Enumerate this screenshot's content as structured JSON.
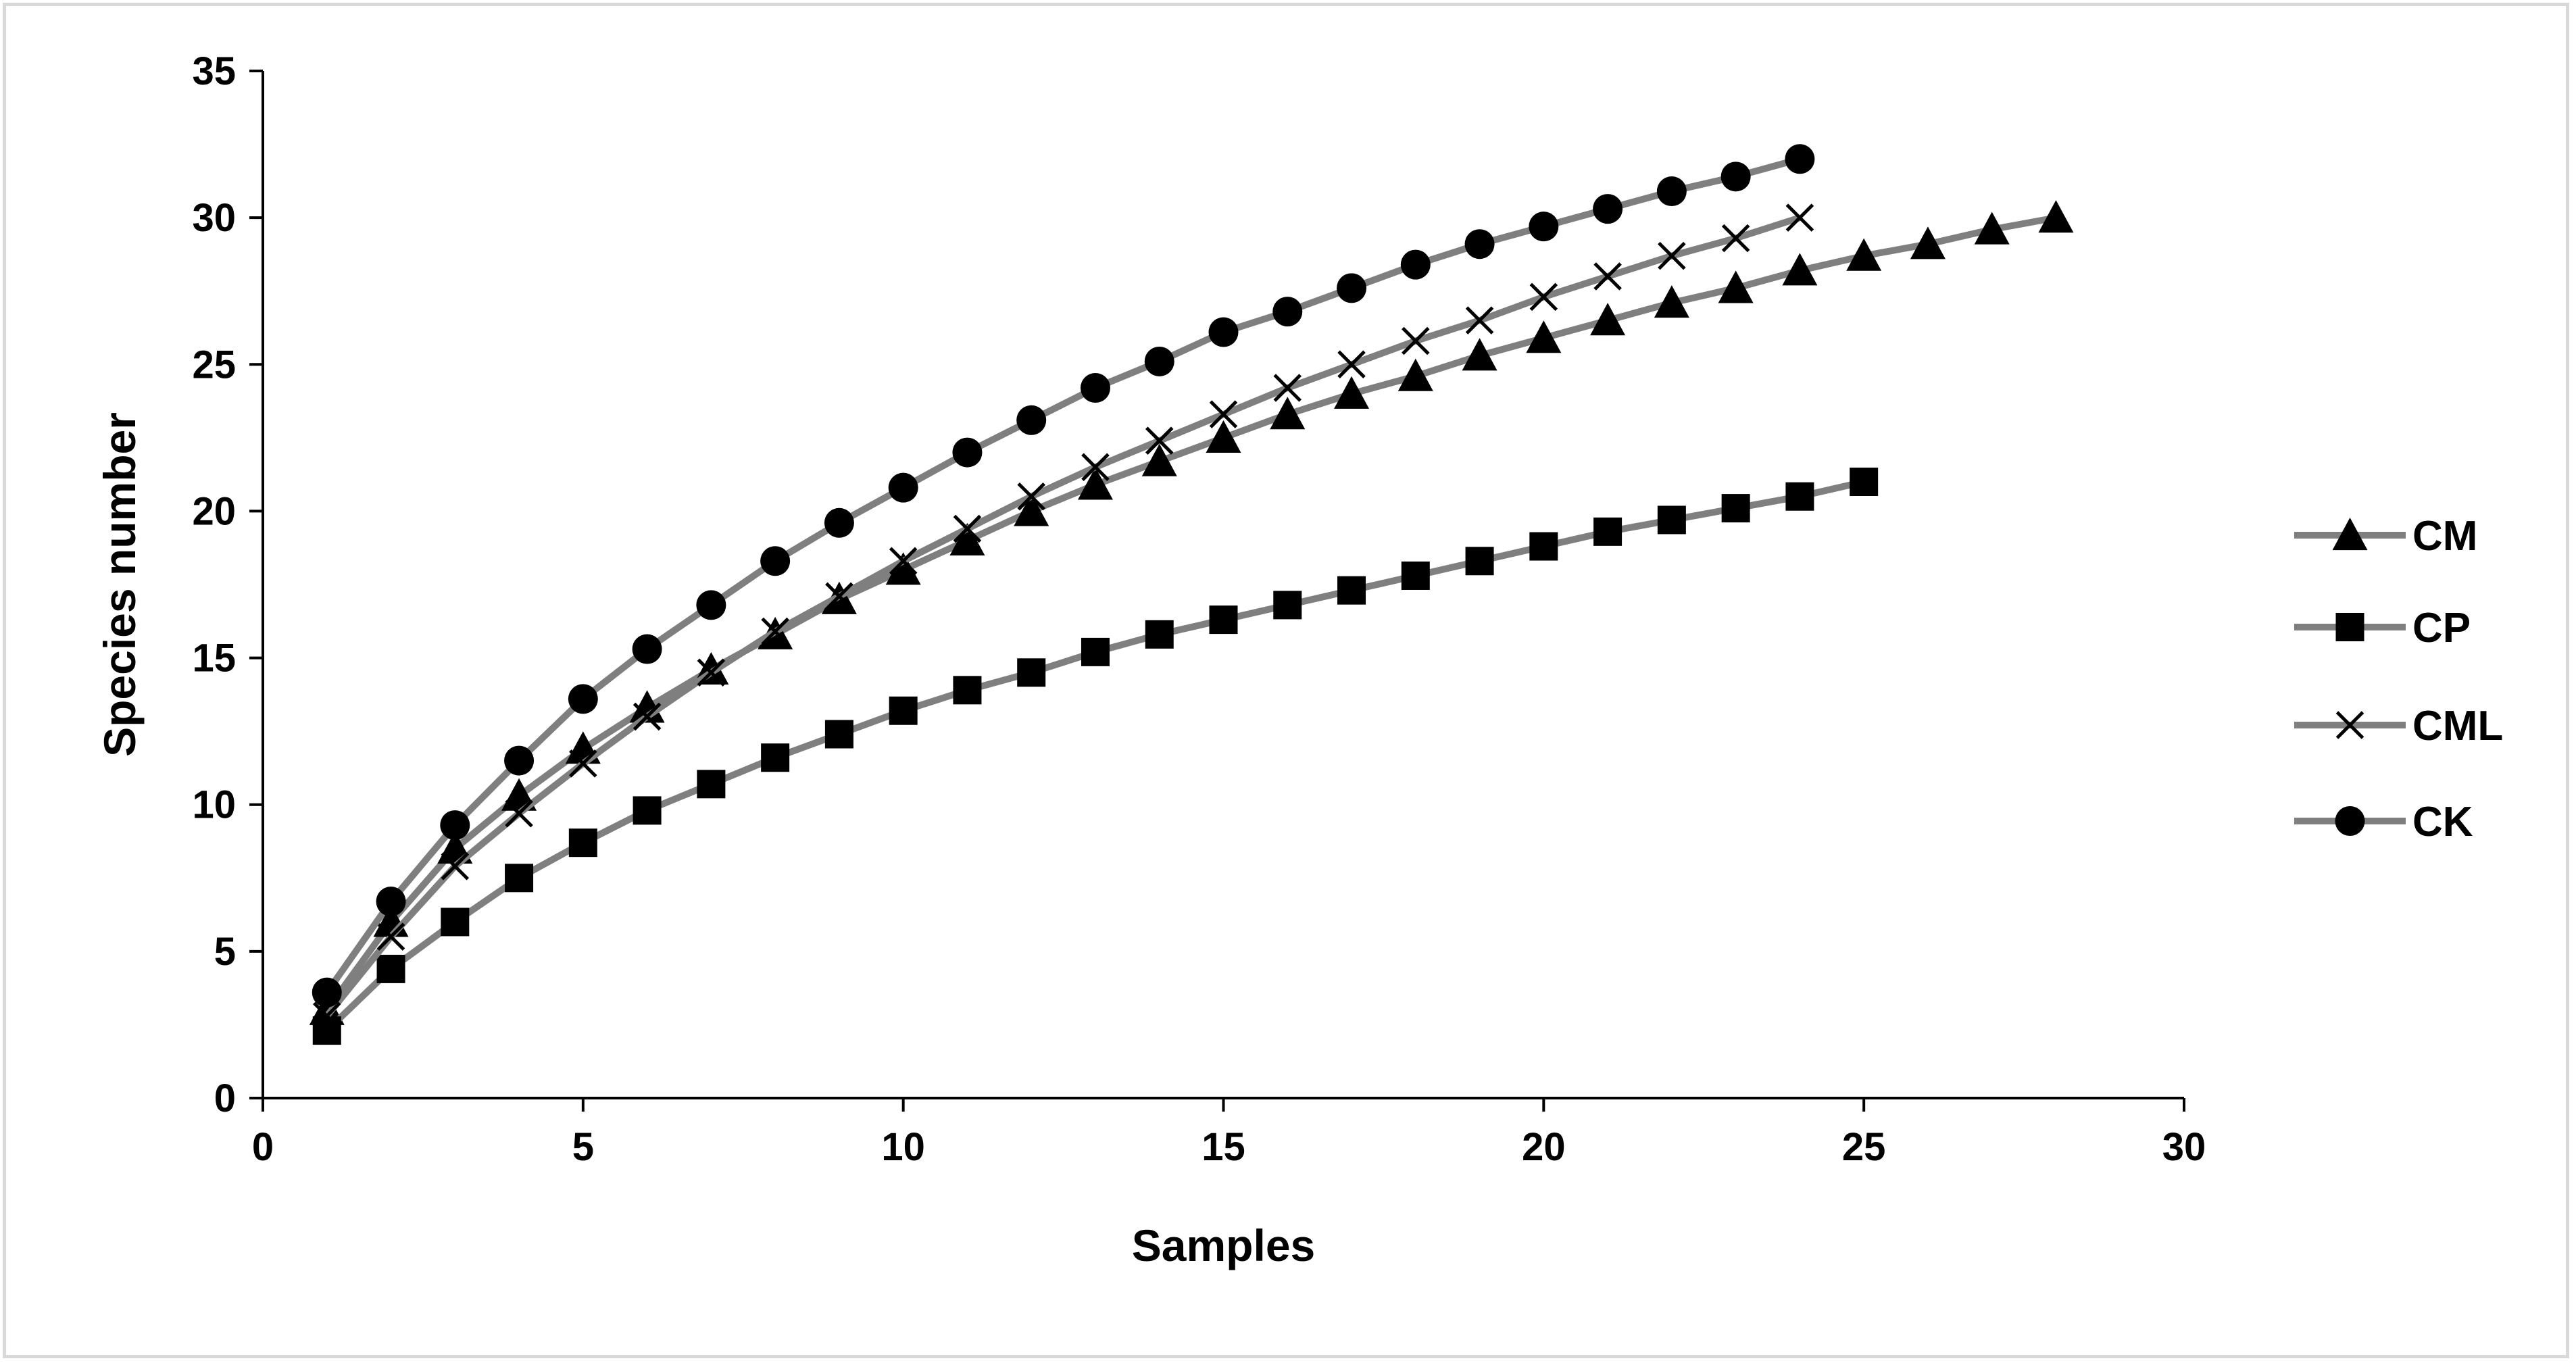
{
  "chart_data": {
    "type": "line",
    "xlabel": "Samples",
    "ylabel": "Species number",
    "xlim": [
      0,
      30
    ],
    "ylim": [
      0,
      35
    ],
    "x_ticks": [
      0,
      5,
      10,
      15,
      20,
      25,
      30
    ],
    "y_ticks": [
      0,
      5,
      10,
      15,
      20,
      25,
      30,
      35
    ],
    "grid": false,
    "legend_position": "right",
    "line_color": "#7f7f7f",
    "marker_color": "#000000",
    "series": [
      {
        "name": "CM",
        "marker": "triangle",
        "x": [
          1,
          2,
          3,
          4,
          5,
          6,
          7,
          8,
          9,
          10,
          11,
          12,
          13,
          14,
          15,
          16,
          17,
          18,
          19,
          20,
          21,
          22,
          23,
          24,
          25,
          26,
          27,
          28
        ],
        "values": [
          3.0,
          6.0,
          8.5,
          10.3,
          11.9,
          13.3,
          14.6,
          15.8,
          17.0,
          18.0,
          19.0,
          20.0,
          20.9,
          21.7,
          22.5,
          23.3,
          24.0,
          24.6,
          25.3,
          25.9,
          26.5,
          27.1,
          27.6,
          28.2,
          28.7,
          29.1,
          29.6,
          30.0
        ]
      },
      {
        "name": "CP",
        "marker": "square",
        "x": [
          1,
          2,
          3,
          4,
          5,
          6,
          7,
          8,
          9,
          10,
          11,
          12,
          13,
          14,
          15,
          16,
          17,
          18,
          19,
          20,
          21,
          22,
          23,
          24,
          25
        ],
        "values": [
          2.3,
          4.4,
          6.0,
          7.5,
          8.7,
          9.8,
          10.7,
          11.6,
          12.4,
          13.2,
          13.9,
          14.5,
          15.2,
          15.8,
          16.3,
          16.8,
          17.3,
          17.8,
          18.3,
          18.8,
          19.3,
          19.7,
          20.1,
          20.5,
          21.0
        ]
      },
      {
        "name": "CML",
        "marker": "x",
        "x": [
          1,
          2,
          3,
          4,
          5,
          6,
          7,
          8,
          9,
          10,
          11,
          12,
          13,
          14,
          15,
          16,
          17,
          18,
          19,
          20,
          21,
          22,
          23,
          24
        ],
        "values": [
          2.8,
          5.5,
          7.9,
          9.7,
          11.4,
          13.0,
          14.5,
          15.9,
          17.1,
          18.3,
          19.4,
          20.5,
          21.5,
          22.4,
          23.3,
          24.2,
          25.0,
          25.8,
          26.5,
          27.3,
          28.0,
          28.7,
          29.3,
          30.0
        ]
      },
      {
        "name": "CK",
        "marker": "circle",
        "x": [
          1,
          2,
          3,
          4,
          5,
          6,
          7,
          8,
          9,
          10,
          11,
          12,
          13,
          14,
          15,
          16,
          17,
          18,
          19,
          20,
          21,
          22,
          23,
          24
        ],
        "values": [
          3.6,
          6.7,
          9.3,
          11.5,
          13.6,
          15.3,
          16.8,
          18.3,
          19.6,
          20.8,
          22.0,
          23.1,
          24.2,
          25.1,
          26.1,
          26.8,
          27.6,
          28.4,
          29.1,
          29.7,
          30.3,
          30.9,
          31.4,
          32.0
        ]
      }
    ]
  }
}
